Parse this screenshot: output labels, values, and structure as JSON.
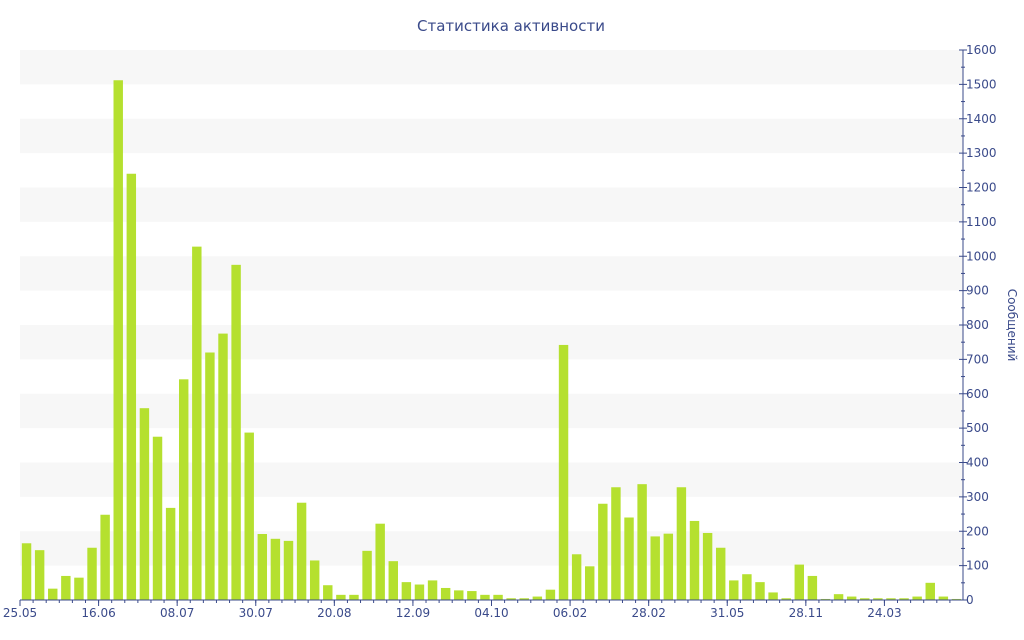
{
  "colors": {
    "bar": "#b5e02f",
    "band": "#f7f7f7",
    "axis": "#3a4a8a",
    "text": "#3a4a8a"
  },
  "chart_data": {
    "type": "bar",
    "title": "Статистика активности",
    "ylabel": "Сообщений",
    "xlabel": "",
    "ylim": [
      0,
      1600
    ],
    "yticks": [
      0,
      100,
      200,
      300,
      400,
      500,
      600,
      700,
      800,
      900,
      1000,
      1100,
      1200,
      1300,
      1400,
      1500,
      1600
    ],
    "y_axis_side": "right",
    "grid": "alternating horizontal bands",
    "xtick_labels": [
      {
        "label": "25.05",
        "index": 0
      },
      {
        "label": "16.06",
        "index": 6
      },
      {
        "label": "08.07",
        "index": 12
      },
      {
        "label": "30.07",
        "index": 18
      },
      {
        "label": "20.08",
        "index": 24
      },
      {
        "label": "12.09",
        "index": 30
      },
      {
        "label": "04.10",
        "index": 36
      },
      {
        "label": "06.02",
        "index": 42
      },
      {
        "label": "28.02",
        "index": 48
      },
      {
        "label": "31.05",
        "index": 54
      },
      {
        "label": "28.11",
        "index": 60
      },
      {
        "label": "24.03",
        "index": 66
      }
    ],
    "values": [
      165,
      145,
      33,
      70,
      65,
      152,
      248,
      1512,
      1240,
      558,
      475,
      268,
      642,
      1028,
      720,
      775,
      975,
      487,
      192,
      178,
      172,
      283,
      115,
      43,
      15,
      15,
      143,
      222,
      113,
      52,
      45,
      57,
      35,
      28,
      26,
      15,
      15,
      5,
      5,
      10,
      30,
      742,
      133,
      98,
      280,
      328,
      240,
      337,
      185,
      193,
      328,
      230,
      195,
      152,
      57,
      75,
      52,
      22,
      5,
      103,
      70,
      3,
      17,
      10,
      5,
      5,
      5,
      5,
      10,
      50,
      10,
      3
    ]
  }
}
